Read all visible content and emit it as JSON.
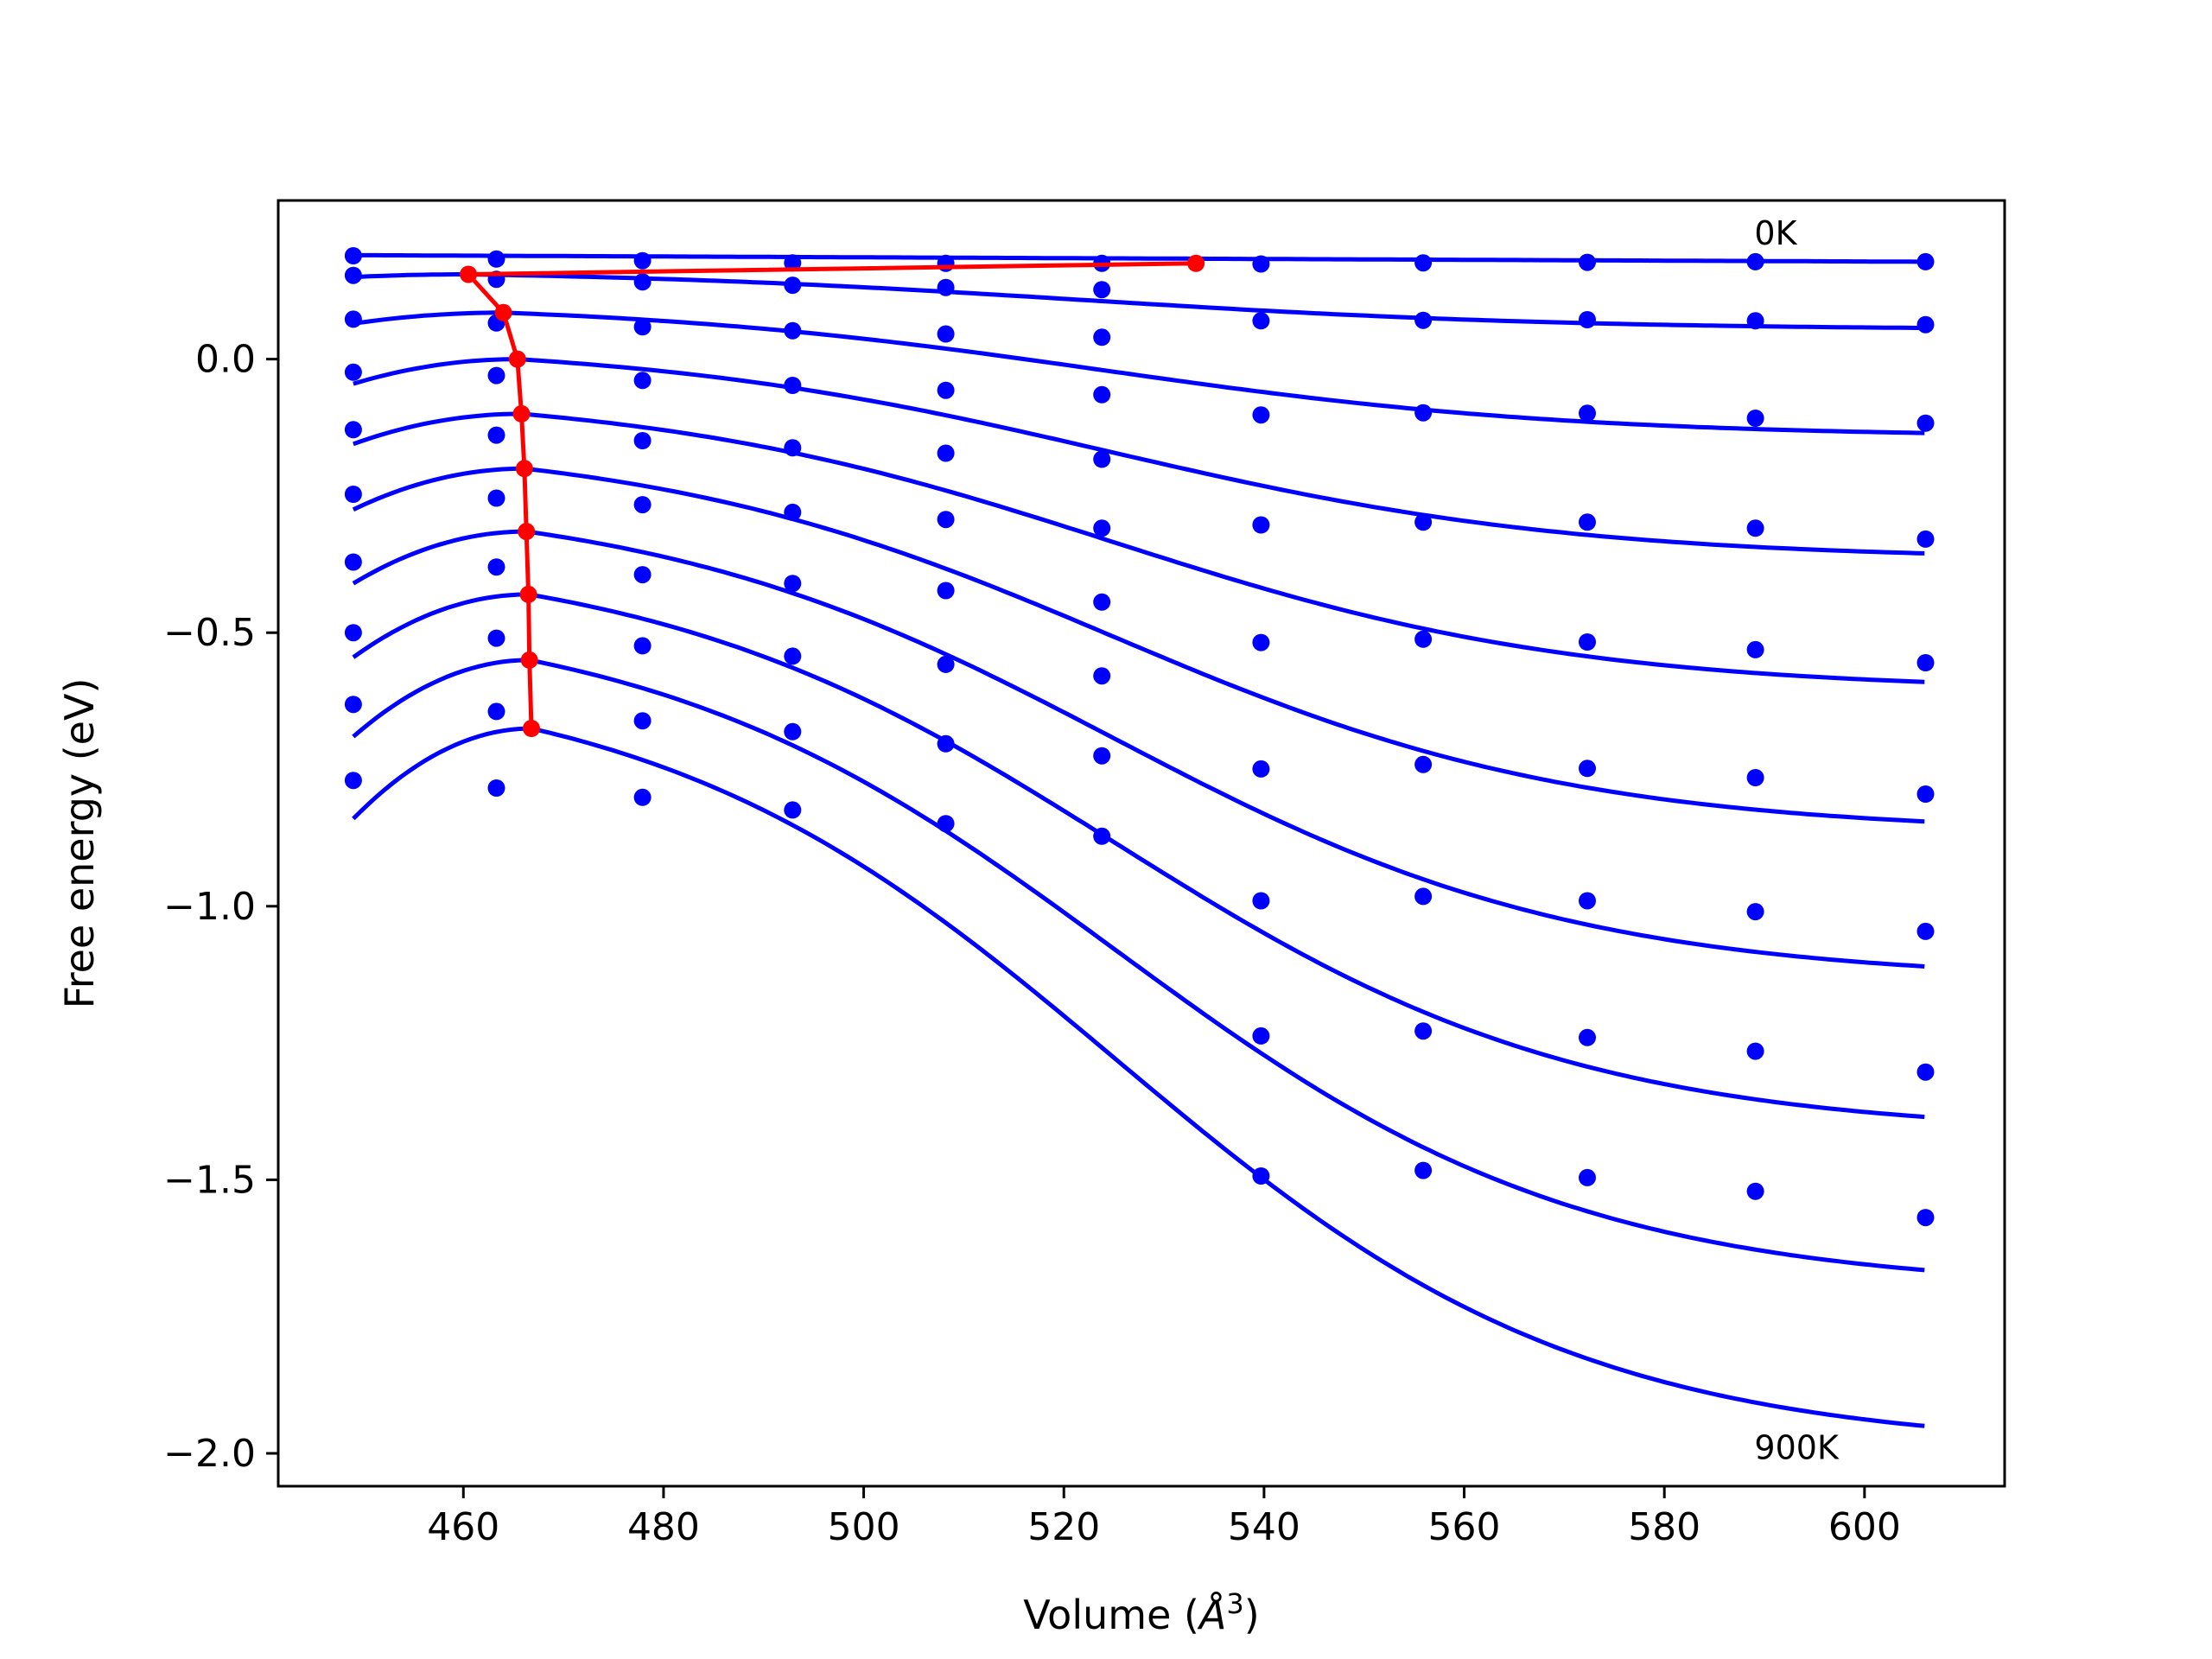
{
  "chart_data": {
    "type": "line",
    "title": "",
    "xlabel_main": "Volume (",
    "xlabel_unit": "Å",
    "xlabel_exp": "3",
    "xlabel_close": ")",
    "ylabel": "Free energy (eV)",
    "xlim": [
      441.5,
      614
    ],
    "ylim": [
      -2.06,
      0.29
    ],
    "xticks": [
      460,
      480,
      500,
      520,
      540,
      560,
      580,
      600
    ],
    "xtick_labels": [
      "460",
      "480",
      "500",
      "520",
      "540",
      "560",
      "580",
      "600"
    ],
    "yticks": [
      0.0,
      -0.5,
      -1.0,
      -1.5,
      -2.0
    ],
    "ytick_labels": [
      "0.0",
      "−0.5",
      "−1.0",
      "−1.5",
      "−2.0"
    ],
    "grid": false,
    "colors": {
      "data": "#0000ff",
      "min_path": "#ff0000",
      "axes": "#000000"
    },
    "annotations": [
      {
        "text": "0K",
        "x": 589,
        "y": 0.23
      },
      {
        "text": "900K",
        "x": 589,
        "y": -1.99
      }
    ],
    "volumes": [
      449.0,
      463.3,
      477.9,
      492.9,
      508.2,
      523.8,
      539.7,
      555.9,
      572.3,
      589.1,
      606.1
    ],
    "point_series": [
      {
        "temperature": "0K",
        "values": [
          0.189,
          0.183,
          0.18,
          0.176,
          0.175,
          0.175,
          0.174,
          0.176,
          0.177,
          0.178,
          0.178
        ]
      },
      {
        "temperature": "100K",
        "values": [
          0.153,
          0.146,
          0.141,
          0.135,
          0.131,
          0.127,
          null,
          null,
          null,
          null,
          null
        ]
      },
      {
        "temperature": "200K",
        "values": [
          0.073,
          0.066,
          0.059,
          0.052,
          0.046,
          0.04,
          0.07,
          0.071,
          0.072,
          0.07,
          0.063
        ]
      },
      {
        "temperature": "300K",
        "values": [
          -0.024,
          -0.03,
          -0.039,
          -0.048,
          -0.057,
          -0.065,
          -0.102,
          -0.098,
          -0.099,
          -0.108,
          -0.117
        ]
      },
      {
        "temperature": "400K",
        "values": [
          -0.129,
          -0.139,
          -0.149,
          -0.162,
          -0.172,
          -0.183,
          -0.303,
          -0.298,
          -0.298,
          -0.309,
          -0.329
        ]
      },
      {
        "temperature": "500K",
        "values": [
          -0.247,
          -0.254,
          -0.266,
          -0.28,
          -0.293,
          -0.309,
          -0.518,
          -0.512,
          -0.517,
          -0.531,
          -0.555
        ]
      },
      {
        "temperature": "600K",
        "values": [
          -0.371,
          -0.38,
          -0.394,
          -0.41,
          -0.423,
          -0.444,
          -0.749,
          -0.741,
          -0.748,
          -0.765,
          -0.795
        ]
      },
      {
        "temperature": "700K",
        "values": [
          -0.5,
          -0.51,
          -0.524,
          -0.543,
          -0.558,
          -0.579,
          -0.99,
          -0.982,
          -0.99,
          -1.01,
          -1.046
        ]
      },
      {
        "temperature": "800K",
        "values": [
          -0.631,
          -0.644,
          -0.661,
          -0.681,
          -0.703,
          -0.725,
          -1.237,
          -1.228,
          -1.24,
          -1.265,
          -1.303
        ]
      },
      {
        "temperature": "900K",
        "values": [
          -0.77,
          -0.784,
          -0.801,
          -0.824,
          -0.849,
          -0.872,
          -1.493,
          -1.483,
          -1.496,
          -1.521,
          -1.569
        ]
      }
    ],
    "fit_curves": [
      {
        "v0": 449,
        "e0": 0.19,
        "vmax": null,
        "emax": null,
        "vend": 606,
        "eend": 0.178
      },
      {
        "v0": 449,
        "e0": 0.15,
        "vmax": 460.5,
        "emax": 0.155,
        "vend": 606,
        "eend": 0.057
      },
      {
        "v0": 449,
        "e0": 0.065,
        "vmax": 464.0,
        "emax": 0.085,
        "vend": 606,
        "eend": -0.135
      },
      {
        "v0": 449,
        "e0": -0.045,
        "vmax": 465.4,
        "emax": 0.0,
        "vend": 606,
        "eend": -0.355
      },
      {
        "v0": 449,
        "e0": -0.155,
        "vmax": 465.8,
        "emax": -0.1,
        "vend": 606,
        "eend": -0.59
      },
      {
        "v0": 449,
        "e0": -0.275,
        "vmax": 466.1,
        "emax": -0.2,
        "vend": 606,
        "eend": -0.845
      },
      {
        "v0": 449,
        "e0": -0.41,
        "vmax": 466.3,
        "emax": -0.315,
        "vend": 606,
        "eend": -1.11
      },
      {
        "v0": 449,
        "e0": -0.545,
        "vmax": 466.5,
        "emax": -0.43,
        "vend": 606,
        "eend": -1.385
      },
      {
        "v0": 449,
        "e0": -0.69,
        "vmax": 466.6,
        "emax": -0.55,
        "vend": 606,
        "eend": -1.665
      },
      {
        "v0": 449,
        "e0": -0.84,
        "vmax": 466.8,
        "emax": -0.675,
        "vend": 606,
        "eend": -1.95
      }
    ],
    "min_path": {
      "x": [
        533.2,
        460.5,
        464.0,
        465.4,
        465.8,
        466.1,
        466.3,
        466.5,
        466.6,
        466.8
      ],
      "y": [
        0.175,
        0.155,
        0.085,
        0.0,
        -0.1,
        -0.2,
        -0.315,
        -0.43,
        -0.55,
        -0.675
      ]
    }
  }
}
